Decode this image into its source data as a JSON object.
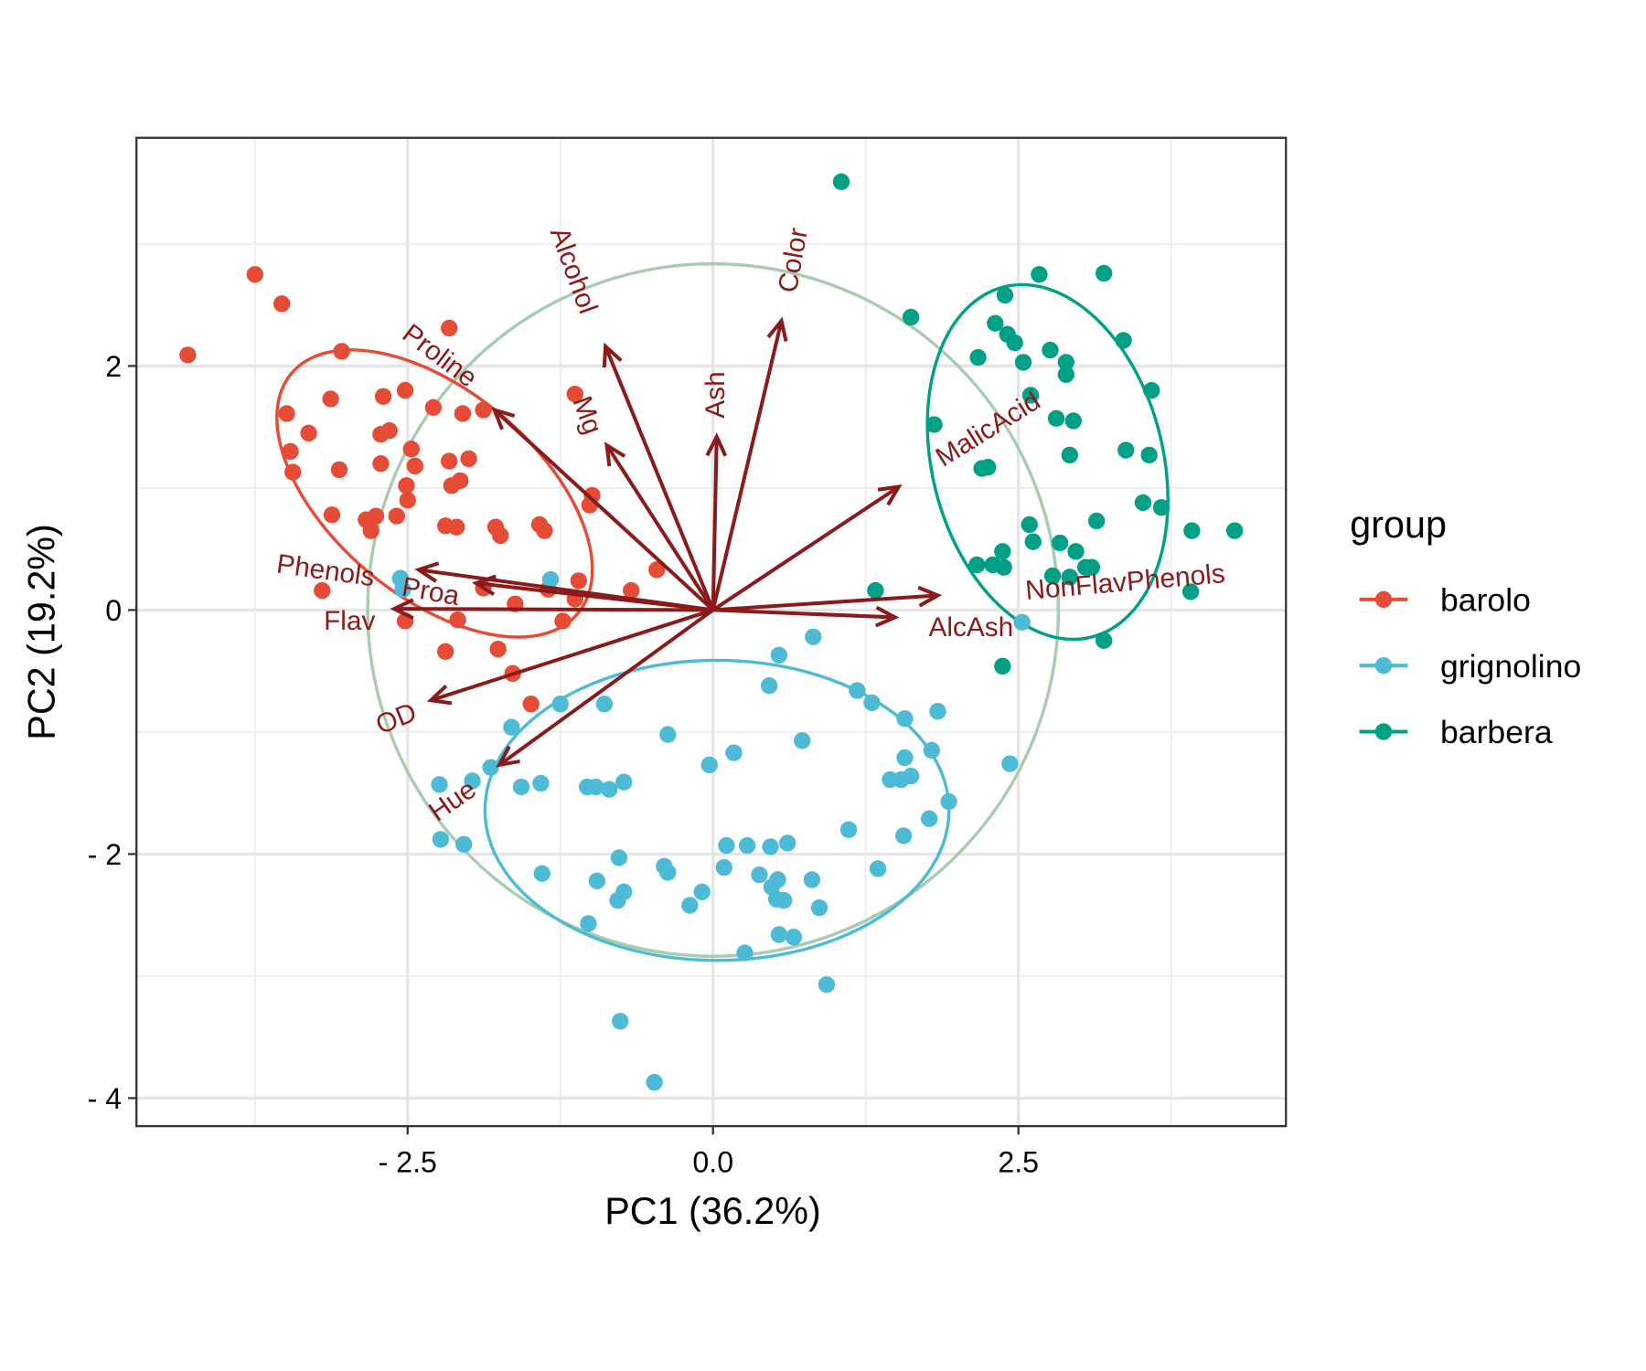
{
  "chart_data": {
    "type": "scatter",
    "subtype": "pca-biplot",
    "xlabel": "PC1 (36.2%)",
    "ylabel": "PC2 (19.2%)",
    "xlim": [
      -4.72,
      4.69
    ],
    "ylim": [
      -4.23,
      3.87
    ],
    "x_ticks": [
      {
        "value": -2.5,
        "label": "- 2.5"
      },
      {
        "value": 0,
        "label": "0.0"
      },
      {
        "value": 2.5,
        "label": "2.5"
      }
    ],
    "y_ticks": [
      {
        "value": 2,
        "label": "2"
      },
      {
        "value": 0,
        "label": "0"
      },
      {
        "value": -2,
        "label": "- 2"
      },
      {
        "value": -4,
        "label": "- 4"
      }
    ],
    "grid": true,
    "legend": {
      "title": "group",
      "placement": "right"
    },
    "colors": {
      "barolo": "#E64B35",
      "grignolino": "#4DBBD5",
      "barbera": "#00A087",
      "arrows": "#8B1A1A",
      "circle": "#A9CBB2"
    },
    "series": [
      {
        "name": "barolo",
        "color": "#E64B35",
        "points": [
          [
            -4.3,
            2.09
          ],
          [
            -3.75,
            2.75
          ],
          [
            -3.53,
            2.51
          ],
          [
            -3.04,
            2.12
          ],
          [
            -2.16,
            2.31
          ],
          [
            -3.13,
            1.73
          ],
          [
            -3.49,
            1.61
          ],
          [
            -3.31,
            1.45
          ],
          [
            -3.46,
            1.3
          ],
          [
            -3.44,
            1.13
          ],
          [
            -3.06,
            1.15
          ],
          [
            -2.7,
            1.75
          ],
          [
            -2.52,
            1.8
          ],
          [
            -2.29,
            1.66
          ],
          [
            -2.05,
            1.61
          ],
          [
            -1.88,
            1.64
          ],
          [
            -2.72,
            1.44
          ],
          [
            -2.65,
            1.47
          ],
          [
            -2.47,
            1.32
          ],
          [
            -2.44,
            1.18
          ],
          [
            -2.72,
            1.2
          ],
          [
            -2.51,
            1.02
          ],
          [
            -2.5,
            0.9
          ],
          [
            -2.16,
            1.22
          ],
          [
            -2.0,
            1.24
          ],
          [
            -2.14,
            1.02
          ],
          [
            -2.07,
            1.06
          ],
          [
            -1.13,
            1.77
          ],
          [
            -0.99,
            0.94
          ],
          [
            -1.01,
            0.86
          ],
          [
            -3.12,
            0.78
          ],
          [
            -2.84,
            0.74
          ],
          [
            -2.76,
            0.77
          ],
          [
            -2.8,
            0.65
          ],
          [
            -2.59,
            0.77
          ],
          [
            -2.19,
            0.69
          ],
          [
            -2.1,
            0.68
          ],
          [
            -1.78,
            0.68
          ],
          [
            -1.74,
            0.61
          ],
          [
            -1.42,
            0.7
          ],
          [
            -1.38,
            0.65
          ],
          [
            -0.46,
            0.33
          ],
          [
            -3.2,
            0.16
          ],
          [
            -1.88,
            0.18
          ],
          [
            -1.62,
            0.05
          ],
          [
            -1.1,
            0.24
          ],
          [
            -0.67,
            0.16
          ],
          [
            -2.52,
            -0.09
          ],
          [
            -2.09,
            -0.08
          ],
          [
            -1.23,
            -0.09
          ],
          [
            -2.19,
            -0.34
          ],
          [
            -1.76,
            -0.32
          ],
          [
            -1.64,
            -0.52
          ],
          [
            -1.49,
            -0.77
          ],
          [
            -1.35,
            0.17
          ],
          [
            -1.13,
            0.09
          ]
        ]
      },
      {
        "name": "grignolino",
        "color": "#4DBBD5",
        "points": [
          [
            -2.56,
            0.26
          ],
          [
            -2.54,
            0.17
          ],
          [
            -1.33,
            0.25
          ],
          [
            0.82,
            -0.22
          ],
          [
            0.54,
            -0.37
          ],
          [
            0.46,
            -0.62
          ],
          [
            1.18,
            -0.66
          ],
          [
            1.3,
            -0.76
          ],
          [
            1.84,
            -0.83
          ],
          [
            1.57,
            -0.89
          ],
          [
            -1.25,
            -0.77
          ],
          [
            -0.89,
            -0.77
          ],
          [
            -1.65,
            -0.96
          ],
          [
            -0.37,
            -1.02
          ],
          [
            0.17,
            -1.17
          ],
          [
            -0.03,
            -1.27
          ],
          [
            0.73,
            -1.07
          ],
          [
            1.79,
            -1.15
          ],
          [
            1.57,
            -1.21
          ],
          [
            1.45,
            -1.39
          ],
          [
            1.54,
            -1.39
          ],
          [
            1.62,
            -1.36
          ],
          [
            -1.82,
            -1.29
          ],
          [
            -2.24,
            -1.43
          ],
          [
            -1.97,
            -1.4
          ],
          [
            -1.57,
            -1.45
          ],
          [
            -1.41,
            -1.42
          ],
          [
            -1.03,
            -1.45
          ],
          [
            -0.96,
            -1.45
          ],
          [
            -0.85,
            -1.47
          ],
          [
            -0.73,
            -1.41
          ],
          [
            1.93,
            -1.57
          ],
          [
            1.77,
            -1.71
          ],
          [
            1.11,
            -1.8
          ],
          [
            -2.23,
            -1.88
          ],
          [
            -2.04,
            -1.92
          ],
          [
            -1.4,
            -2.16
          ],
          [
            -0.95,
            -2.22
          ],
          [
            -0.77,
            -2.03
          ],
          [
            -0.4,
            -2.1
          ],
          [
            -0.37,
            -2.15
          ],
          [
            0.11,
            -1.93
          ],
          [
            0.28,
            -1.93
          ],
          [
            0.47,
            -1.94
          ],
          [
            0.61,
            -1.91
          ],
          [
            0.09,
            -2.11
          ],
          [
            -0.09,
            -2.31
          ],
          [
            -0.78,
            -2.38
          ],
          [
            -0.73,
            -2.31
          ],
          [
            -0.19,
            -2.42
          ],
          [
            0.38,
            -2.17
          ],
          [
            0.53,
            -2.21
          ],
          [
            0.81,
            -2.21
          ],
          [
            0.48,
            -2.27
          ],
          [
            0.52,
            -2.37
          ],
          [
            0.58,
            -2.38
          ],
          [
            0.87,
            -2.44
          ],
          [
            1.35,
            -2.12
          ],
          [
            1.56,
            -1.85
          ],
          [
            0.54,
            -2.66
          ],
          [
            0.66,
            -2.68
          ],
          [
            -1.02,
            -2.57
          ],
          [
            0.26,
            -2.81
          ],
          [
            0.93,
            -3.07
          ],
          [
            -0.76,
            -3.37
          ],
          [
            -0.48,
            -3.87
          ],
          [
            2.43,
            -1.26
          ],
          [
            2.53,
            -0.1
          ]
        ]
      },
      {
        "name": "barbera",
        "color": "#00A087",
        "points": [
          [
            1.05,
            3.51
          ],
          [
            2.67,
            2.75
          ],
          [
            3.2,
            2.76
          ],
          [
            1.62,
            2.4
          ],
          [
            2.39,
            2.58
          ],
          [
            2.31,
            2.35
          ],
          [
            2.41,
            2.26
          ],
          [
            2.47,
            2.19
          ],
          [
            2.17,
            2.07
          ],
          [
            2.54,
            2.03
          ],
          [
            2.76,
            2.13
          ],
          [
            2.89,
            2.03
          ],
          [
            2.89,
            1.93
          ],
          [
            2.6,
            1.76
          ],
          [
            3.36,
            2.21
          ],
          [
            3.59,
            1.8
          ],
          [
            2.81,
            1.57
          ],
          [
            2.95,
            1.55
          ],
          [
            1.81,
            1.52
          ],
          [
            2.2,
            1.16
          ],
          [
            2.25,
            1.17
          ],
          [
            2.92,
            1.27
          ],
          [
            3.38,
            1.31
          ],
          [
            3.57,
            1.27
          ],
          [
            3.52,
            0.88
          ],
          [
            3.67,
            0.84
          ],
          [
            3.14,
            0.73
          ],
          [
            2.59,
            0.7
          ],
          [
            2.62,
            0.56
          ],
          [
            2.84,
            0.55
          ],
          [
            2.97,
            0.48
          ],
          [
            2.37,
            0.48
          ],
          [
            2.38,
            0.35
          ],
          [
            2.16,
            0.37
          ],
          [
            2.29,
            0.37
          ],
          [
            2.78,
            0.28
          ],
          [
            2.92,
            0.27
          ],
          [
            3.05,
            0.35
          ],
          [
            3.1,
            0.35
          ],
          [
            3.92,
            0.65
          ],
          [
            4.27,
            0.65
          ],
          [
            3.91,
            0.15
          ],
          [
            1.33,
            0.16
          ],
          [
            3.2,
            -0.25
          ],
          [
            2.37,
            -0.46
          ]
        ]
      }
    ],
    "loadings": [
      {
        "label": "Alcohol",
        "x": -0.88,
        "y": 2.16
      },
      {
        "label": "Color",
        "x": 0.56,
        "y": 2.37
      },
      {
        "label": "Ash",
        "x": 0.03,
        "y": 1.42
      },
      {
        "label": "Mg",
        "x": -0.87,
        "y": 1.35
      },
      {
        "label": "Proline",
        "x": -1.79,
        "y": 1.64
      },
      {
        "label": "MalicAcid",
        "x": 1.52,
        "y": 1.01
      },
      {
        "label": "NonFlavPhenols",
        "x": 1.84,
        "y": 0.12
      },
      {
        "label": "AlcAsh",
        "x": 1.49,
        "y": -0.06
      },
      {
        "label": "Phenols",
        "x": -2.41,
        "y": 0.33
      },
      {
        "label": "Proa",
        "x": -1.94,
        "y": 0.22
      },
      {
        "label": "Flav",
        "x": -2.61,
        "y": 0.01
      },
      {
        "label": "OD",
        "x": -2.31,
        "y": -0.74
      },
      {
        "label": "Hue",
        "x": -1.75,
        "y": -1.27
      }
    ]
  }
}
